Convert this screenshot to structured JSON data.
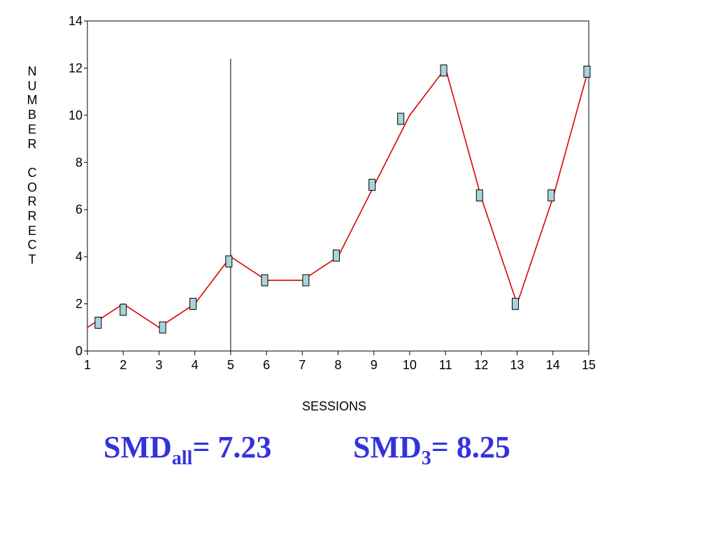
{
  "chart_data": {
    "type": "line",
    "title": "",
    "xlabel": "SESSIONS",
    "ylabel": "NUMBER CORRECT",
    "xlim": [
      1,
      15
    ],
    "ylim": [
      0,
      14
    ],
    "x_ticks": [
      1,
      2,
      3,
      4,
      5,
      6,
      7,
      8,
      9,
      10,
      11,
      12,
      13,
      14,
      15
    ],
    "y_ticks": [
      0,
      2,
      4,
      6,
      8,
      10,
      12,
      14
    ],
    "phase_line_x": 5,
    "grid": false,
    "legend": "none",
    "line_color": "#dd0000",
    "marker_color": "#a8d4dc",
    "line": {
      "x": [
        1,
        2,
        3,
        4,
        5,
        6,
        7,
        8,
        9,
        10,
        11,
        12,
        13,
        14,
        15
      ],
      "y": [
        1,
        2,
        1,
        2,
        4,
        3,
        3,
        4,
        7,
        10,
        12,
        6.5,
        2,
        6.5,
        12
      ]
    },
    "markers": {
      "x": [
        1.3,
        2,
        3.1,
        3.95,
        4.95,
        5.95,
        7.1,
        7.95,
        8.95,
        9.75,
        10.95,
        11.95,
        12.95,
        13.95,
        14.95
      ],
      "y": [
        1.2,
        1.75,
        1,
        2,
        3.8,
        3,
        3,
        4.05,
        7.05,
        9.85,
        11.9,
        6.6,
        2,
        6.6,
        11.85
      ]
    }
  },
  "formulas": {
    "smd_all": {
      "prefix": "SMD",
      "sub": "all",
      "suffix": "= 7.23"
    },
    "smd_3": {
      "prefix": "SMD",
      "sub": "3",
      "suffix": "= 8.25"
    }
  }
}
